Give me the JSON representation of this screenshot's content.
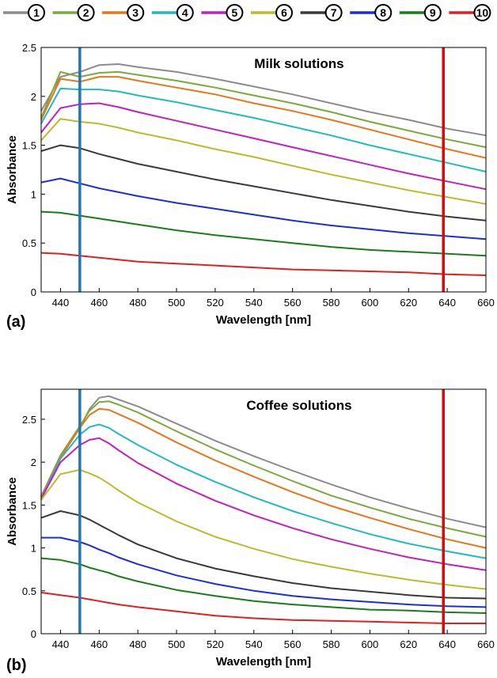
{
  "legend": [
    {
      "label": "1",
      "color": "#8c8c8c"
    },
    {
      "label": "2",
      "color": "#7aaa3c"
    },
    {
      "label": "3",
      "color": "#e8761a"
    },
    {
      "label": "4",
      "color": "#1fbcbc"
    },
    {
      "label": "5",
      "color": "#c21fc2"
    },
    {
      "label": "6",
      "color": "#bcbc2a"
    },
    {
      "label": "7",
      "color": "#3a3a3a"
    },
    {
      "label": "8",
      "color": "#1c2fd6"
    },
    {
      "label": "9",
      "color": "#1a7d1a"
    },
    {
      "label": "10",
      "color": "#e02020"
    }
  ],
  "panels": [
    {
      "letter": "(a)"
    },
    {
      "letter": "(b)"
    }
  ],
  "chart_data": [
    {
      "type": "line",
      "title": "Milk solutions",
      "xlabel": "Wavelength [nm]",
      "ylabel": "Absorbance",
      "xlim": [
        430,
        660
      ],
      "ylim": [
        0,
        2.5
      ],
      "xticks": [
        440,
        460,
        480,
        500,
        520,
        540,
        560,
        580,
        600,
        620,
        640,
        660
      ],
      "yticks": [
        0,
        0.5,
        1,
        1.5,
        2,
        2.5
      ],
      "grid": false,
      "vlines": [
        {
          "x": 450,
          "color": "#1f77b4"
        },
        {
          "x": 638,
          "color": "#cc1010"
        }
      ],
      "x": [
        430,
        440,
        450,
        460,
        470,
        480,
        500,
        520,
        540,
        560,
        580,
        600,
        620,
        640,
        660
      ],
      "series": [
        {
          "name": "1",
          "color": "#8c8c8c",
          "values": [
            1.85,
            2.2,
            2.25,
            2.32,
            2.33,
            2.3,
            2.25,
            2.18,
            2.1,
            2.02,
            1.93,
            1.84,
            1.76,
            1.67,
            1.6
          ]
        },
        {
          "name": "2",
          "color": "#7aaa3c",
          "values": [
            1.78,
            2.25,
            2.2,
            2.24,
            2.25,
            2.22,
            2.16,
            2.09,
            2.01,
            1.93,
            1.84,
            1.74,
            1.65,
            1.56,
            1.48
          ]
        },
        {
          "name": "3",
          "color": "#e8761a",
          "values": [
            1.76,
            2.18,
            2.15,
            2.2,
            2.2,
            2.16,
            2.09,
            2.02,
            1.93,
            1.85,
            1.76,
            1.66,
            1.56,
            1.46,
            1.37
          ]
        },
        {
          "name": "4",
          "color": "#1fbcbc",
          "values": [
            1.72,
            2.08,
            2.07,
            2.07,
            2.05,
            2.01,
            1.94,
            1.86,
            1.78,
            1.69,
            1.6,
            1.5,
            1.41,
            1.32,
            1.23
          ]
        },
        {
          "name": "5",
          "color": "#c21fc2",
          "values": [
            1.63,
            1.88,
            1.92,
            1.93,
            1.89,
            1.84,
            1.75,
            1.66,
            1.57,
            1.48,
            1.39,
            1.3,
            1.21,
            1.13,
            1.05
          ]
        },
        {
          "name": "6",
          "color": "#bcbc2a",
          "values": [
            1.55,
            1.77,
            1.74,
            1.72,
            1.68,
            1.63,
            1.55,
            1.46,
            1.38,
            1.29,
            1.2,
            1.12,
            1.04,
            0.97,
            0.9
          ]
        },
        {
          "name": "7",
          "color": "#3a3a3a",
          "values": [
            1.44,
            1.5,
            1.47,
            1.41,
            1.36,
            1.31,
            1.23,
            1.15,
            1.08,
            1.01,
            0.94,
            0.88,
            0.82,
            0.77,
            0.73
          ]
        },
        {
          "name": "8",
          "color": "#1c2fd6",
          "values": [
            1.12,
            1.16,
            1.11,
            1.06,
            1.02,
            0.98,
            0.91,
            0.85,
            0.79,
            0.73,
            0.68,
            0.64,
            0.6,
            0.57,
            0.54
          ]
        },
        {
          "name": "9",
          "color": "#1a7d1a",
          "values": [
            0.82,
            0.81,
            0.78,
            0.75,
            0.72,
            0.69,
            0.63,
            0.58,
            0.54,
            0.5,
            0.46,
            0.43,
            0.41,
            0.39,
            0.37
          ]
        },
        {
          "name": "10",
          "color": "#e02020",
          "values": [
            0.4,
            0.39,
            0.37,
            0.35,
            0.33,
            0.31,
            0.29,
            0.27,
            0.25,
            0.23,
            0.22,
            0.21,
            0.2,
            0.18,
            0.17
          ]
        }
      ]
    },
    {
      "type": "line",
      "title": "Coffee solutions",
      "xlabel": "Wavelength [nm]",
      "ylabel": "Absorbance",
      "xlim": [
        430,
        660
      ],
      "ylim": [
        0,
        2.85
      ],
      "xticks": [
        440,
        460,
        480,
        500,
        520,
        540,
        560,
        580,
        600,
        620,
        640,
        660
      ],
      "yticks": [
        0,
        0.5,
        1,
        1.5,
        2,
        2.5
      ],
      "grid": false,
      "vlines": [
        {
          "x": 450,
          "color": "#1f77b4"
        },
        {
          "x": 638,
          "color": "#cc1010"
        }
      ],
      "x": [
        430,
        440,
        450,
        455,
        460,
        465,
        470,
        480,
        500,
        520,
        540,
        560,
        580,
        600,
        620,
        640,
        660
      ],
      "series": [
        {
          "name": "1",
          "color": "#8c8c8c",
          "values": [
            1.6,
            2.05,
            2.4,
            2.62,
            2.75,
            2.77,
            2.73,
            2.65,
            2.45,
            2.25,
            2.07,
            1.9,
            1.74,
            1.59,
            1.46,
            1.34,
            1.24
          ]
        },
        {
          "name": "2",
          "color": "#7aaa3c",
          "values": [
            1.6,
            2.08,
            2.42,
            2.6,
            2.7,
            2.71,
            2.67,
            2.58,
            2.36,
            2.15,
            1.96,
            1.78,
            1.61,
            1.47,
            1.34,
            1.23,
            1.13
          ]
        },
        {
          "name": "3",
          "color": "#e8761a",
          "values": [
            1.6,
            2.06,
            2.4,
            2.55,
            2.62,
            2.61,
            2.56,
            2.46,
            2.23,
            2.02,
            1.83,
            1.65,
            1.49,
            1.35,
            1.22,
            1.1,
            1.0
          ]
        },
        {
          "name": "4",
          "color": "#1fbcbc",
          "values": [
            1.58,
            2.04,
            2.32,
            2.41,
            2.44,
            2.4,
            2.33,
            2.2,
            1.97,
            1.77,
            1.59,
            1.43,
            1.29,
            1.16,
            1.05,
            0.96,
            0.88
          ]
        },
        {
          "name": "5",
          "color": "#c21fc2",
          "values": [
            1.57,
            2.0,
            2.2,
            2.26,
            2.28,
            2.22,
            2.14,
            1.99,
            1.75,
            1.55,
            1.38,
            1.23,
            1.1,
            0.99,
            0.89,
            0.81,
            0.74
          ]
        },
        {
          "name": "6",
          "color": "#bcbc2a",
          "values": [
            1.56,
            1.86,
            1.91,
            1.87,
            1.82,
            1.75,
            1.67,
            1.53,
            1.31,
            1.13,
            0.99,
            0.87,
            0.78,
            0.7,
            0.63,
            0.57,
            0.52
          ]
        },
        {
          "name": "7",
          "color": "#3a3a3a",
          "values": [
            1.35,
            1.43,
            1.38,
            1.33,
            1.27,
            1.21,
            1.15,
            1.04,
            0.88,
            0.76,
            0.67,
            0.59,
            0.53,
            0.49,
            0.45,
            0.42,
            0.41
          ]
        },
        {
          "name": "8",
          "color": "#1c2fd6",
          "values": [
            1.12,
            1.12,
            1.07,
            1.03,
            0.98,
            0.94,
            0.89,
            0.81,
            0.68,
            0.58,
            0.5,
            0.44,
            0.4,
            0.37,
            0.34,
            0.32,
            0.31
          ]
        },
        {
          "name": "9",
          "color": "#1a7d1a",
          "values": [
            0.88,
            0.86,
            0.81,
            0.77,
            0.74,
            0.71,
            0.67,
            0.61,
            0.51,
            0.44,
            0.38,
            0.34,
            0.31,
            0.28,
            0.27,
            0.25,
            0.24
          ]
        },
        {
          "name": "10",
          "color": "#e02020",
          "values": [
            0.48,
            0.45,
            0.42,
            0.4,
            0.38,
            0.36,
            0.34,
            0.31,
            0.26,
            0.21,
            0.18,
            0.16,
            0.15,
            0.14,
            0.13,
            0.12,
            0.12
          ]
        }
      ]
    }
  ]
}
